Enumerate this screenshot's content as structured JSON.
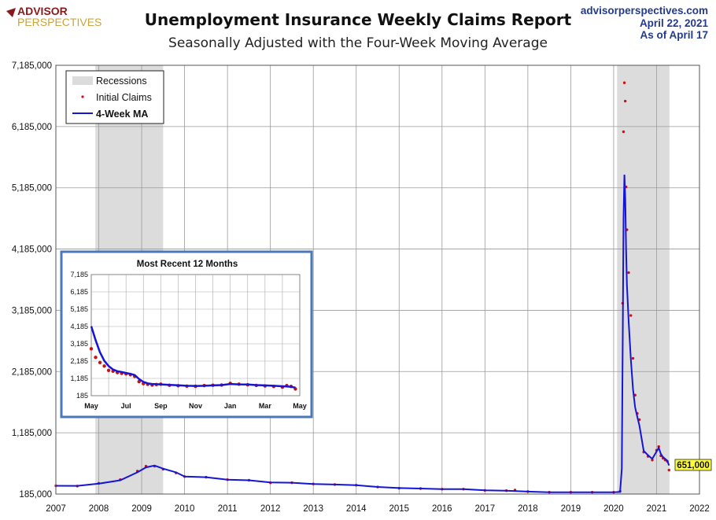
{
  "logo": {
    "line1": "ADVISOR",
    "line2": "PERSPECTIVES"
  },
  "header": {
    "title": "Unemployment Insurance Weekly Claims Report",
    "subtitle": "Seasonally Adjusted with the Four-Week Moving Average",
    "source": "advisorperspectives.com",
    "date": "April 22, 2021",
    "as_of": "As of April 17"
  },
  "colors": {
    "claims": "#cc1111",
    "ma": "#1515d6",
    "recession": "#dcdcdc",
    "inset_border": "#4a78b8",
    "callout": "#ffff33"
  },
  "chart_data": {
    "type": "line",
    "x_range": [
      2007,
      2022
    ],
    "x_ticks": [
      "2007",
      "2008",
      "2009",
      "2010",
      "2011",
      "2012",
      "2013",
      "2014",
      "2015",
      "2016",
      "2017",
      "2018",
      "2019",
      "2020",
      "2021",
      "2022"
    ],
    "y_range": [
      185000,
      7185000
    ],
    "y_ticks": [
      "185,000",
      "1,185,000",
      "2,185,000",
      "3,185,000",
      "4,185,000",
      "5,185,000",
      "6,185,000",
      "7,185,000"
    ],
    "grid": true,
    "legend": {
      "placement": "top-left",
      "entries": [
        "Recessions",
        "Initial Claims",
        "4-Week MA"
      ]
    },
    "recessions": [
      [
        2007.92,
        2009.5
      ],
      [
        2020.08,
        2021.3
      ]
    ],
    "series": [
      {
        "name": "Initial Claims",
        "kind": "points",
        "x": [
          2007.0,
          2007.5,
          2008.0,
          2008.5,
          2008.9,
          2009.1,
          2009.3,
          2009.5,
          2009.8,
          2010.0,
          2010.5,
          2011.0,
          2011.5,
          2012.0,
          2012.5,
          2013.0,
          2013.5,
          2014.0,
          2014.5,
          2015.0,
          2015.5,
          2016.0,
          2016.5,
          2017.0,
          2017.5,
          2017.7,
          2018.0,
          2018.5,
          2019.0,
          2019.5,
          2020.0,
          2020.15,
          2020.21,
          2020.23,
          2020.25,
          2020.27,
          2020.29,
          2020.31,
          2020.35,
          2020.4,
          2020.45,
          2020.5,
          2020.55,
          2020.6,
          2020.7,
          2020.8,
          2020.9,
          2021.0,
          2021.05,
          2021.1,
          2021.15,
          2021.2,
          2021.25,
          2021.29
        ],
        "y": [
          320000,
          315000,
          360000,
          420000,
          560000,
          640000,
          640000,
          590000,
          530000,
          470000,
          460000,
          420000,
          410000,
          370000,
          370000,
          350000,
          340000,
          330000,
          300000,
          280000,
          275000,
          265000,
          265000,
          245000,
          240000,
          250000,
          225000,
          215000,
          215000,
          215000,
          215000,
          230000,
          3300000,
          6100000,
          6900000,
          6600000,
          5200000,
          4500000,
          3800000,
          3100000,
          2400000,
          1800000,
          1500000,
          1400000,
          870000,
          800000,
          740000,
          900000,
          960000,
          810000,
          770000,
          740000,
          719000,
          576000
        ]
      },
      {
        "name": "4-Week MA",
        "kind": "line",
        "x": [
          2007.0,
          2007.5,
          2008.0,
          2008.5,
          2008.9,
          2009.1,
          2009.3,
          2009.5,
          2009.8,
          2010.0,
          2010.5,
          2011.0,
          2011.5,
          2012.0,
          2012.5,
          2013.0,
          2013.5,
          2014.0,
          2014.5,
          2015.0,
          2015.5,
          2016.0,
          2016.5,
          2017.0,
          2017.5,
          2018.0,
          2018.5,
          2019.0,
          2019.5,
          2020.0,
          2020.15,
          2020.19,
          2020.21,
          2020.23,
          2020.25,
          2020.27,
          2020.29,
          2020.31,
          2020.35,
          2020.4,
          2020.45,
          2020.5,
          2020.55,
          2020.6,
          2020.7,
          2020.8,
          2020.9,
          2021.0,
          2021.05,
          2021.1,
          2021.15,
          2021.2,
          2021.25,
          2021.29
        ],
        "y": [
          320000,
          318000,
          355000,
          410000,
          540000,
          620000,
          650000,
          600000,
          540000,
          470000,
          460000,
          420000,
          410000,
          375000,
          370000,
          350000,
          340000,
          330000,
          300000,
          282000,
          275000,
          265000,
          265000,
          245000,
          240000,
          225000,
          215000,
          215000,
          215000,
          215000,
          220000,
          600000,
          2600000,
          4700000,
          5400000,
          5000000,
          4200000,
          3600000,
          3000000,
          2400000,
          1900000,
          1600000,
          1450000,
          1300000,
          890000,
          820000,
          760000,
          880000,
          940000,
          840000,
          790000,
          760000,
          730000,
          651000
        ]
      }
    ],
    "callout": {
      "label": "651,000",
      "value": 651000
    },
    "inset": {
      "title": "Most Recent 12 Months",
      "x_ticks": [
        "May",
        "Jul",
        "Sep",
        "Nov",
        "Jan",
        "Mar",
        "May"
      ],
      "y_range": [
        185000,
        7185000
      ],
      "y_ticks": [
        "185",
        "1,185",
        "2,185",
        "3,185",
        "4,185",
        "5,185",
        "6,185",
        "7,185"
      ],
      "claims": {
        "x": [
          0,
          0.25,
          0.5,
          0.75,
          1,
          1.25,
          1.5,
          1.75,
          2,
          2.25,
          2.5,
          2.75,
          3,
          3.25,
          3.5,
          3.75,
          4,
          4.5,
          5,
          5.5,
          6,
          6.5,
          7,
          7.5,
          8,
          8.5,
          9,
          9.5,
          10,
          10.5,
          11,
          11.25,
          11.5,
          11.75
        ],
        "y": [
          2900000,
          2400000,
          2100000,
          1900000,
          1650000,
          1600000,
          1520000,
          1480000,
          1450000,
          1400000,
          1300000,
          1000000,
          880000,
          840000,
          800000,
          830000,
          850000,
          790000,
          760000,
          740000,
          730000,
          770000,
          790000,
          800000,
          900000,
          850000,
          820000,
          780000,
          750000,
          720000,
          680000,
          770000,
          720000,
          576000
        ]
      },
      "ma": {
        "x": [
          0,
          0.25,
          0.5,
          0.75,
          1,
          1.25,
          1.5,
          1.75,
          2,
          2.25,
          2.5,
          2.75,
          3,
          3.25,
          3.5,
          3.75,
          4,
          4.5,
          5,
          5.5,
          6,
          6.5,
          7,
          7.5,
          8,
          8.5,
          9,
          9.5,
          10,
          10.5,
          11,
          11.25,
          11.5,
          11.75
        ],
        "y": [
          4200000,
          3400000,
          2700000,
          2200000,
          1900000,
          1700000,
          1600000,
          1560000,
          1500000,
          1450000,
          1380000,
          1150000,
          980000,
          900000,
          860000,
          850000,
          840000,
          810000,
          790000,
          760000,
          750000,
          760000,
          780000,
          800000,
          860000,
          840000,
          830000,
          800000,
          780000,
          760000,
          730000,
          720000,
          700000,
          651000
        ]
      }
    }
  }
}
